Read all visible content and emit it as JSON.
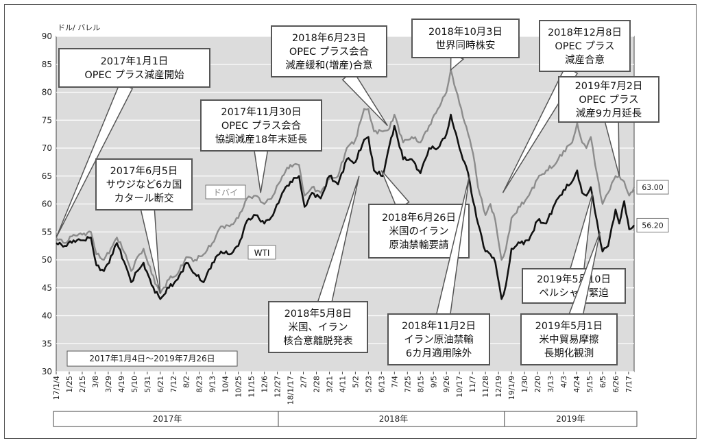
{
  "chart_data": {
    "type": "line",
    "unit_label": "ドル/ バレル",
    "ylim": [
      30,
      90
    ],
    "yticks": [
      30,
      35,
      40,
      45,
      50,
      55,
      60,
      65,
      70,
      75,
      80,
      85,
      90
    ],
    "xlim": [
      "2017-01-04",
      "2019-07-26"
    ],
    "grid": true,
    "period_label": "2017年1月4日～2019年7月26日",
    "x_ticks": [
      {
        "date": "2017-01-04",
        "label": "17/1/4"
      },
      {
        "date": "2017-01-25",
        "label": "1/25"
      },
      {
        "date": "2017-02-15",
        "label": "2/15"
      },
      {
        "date": "2017-03-08",
        "label": "3/8"
      },
      {
        "date": "2017-03-29",
        "label": "3/29"
      },
      {
        "date": "2017-04-19",
        "label": "4/19"
      },
      {
        "date": "2017-05-10",
        "label": "5/10"
      },
      {
        "date": "2017-05-31",
        "label": "5/31"
      },
      {
        "date": "2017-06-21",
        "label": "6/21"
      },
      {
        "date": "2017-07-12",
        "label": "7/12"
      },
      {
        "date": "2017-08-02",
        "label": "8/2"
      },
      {
        "date": "2017-08-23",
        "label": "8/23"
      },
      {
        "date": "2017-09-13",
        "label": "9/13"
      },
      {
        "date": "2017-10-04",
        "label": "10/4"
      },
      {
        "date": "2017-10-25",
        "label": "10/25"
      },
      {
        "date": "2017-11-15",
        "label": "11/15"
      },
      {
        "date": "2017-12-06",
        "label": "12/6"
      },
      {
        "date": "2017-12-27",
        "label": "12/27"
      },
      {
        "date": "2018-01-17",
        "label": "18/1/17"
      },
      {
        "date": "2018-02-07",
        "label": "2/7"
      },
      {
        "date": "2018-02-28",
        "label": "2/28"
      },
      {
        "date": "2018-03-21",
        "label": "3/21"
      },
      {
        "date": "2018-04-11",
        "label": "4/11"
      },
      {
        "date": "2018-05-02",
        "label": "5/2"
      },
      {
        "date": "2018-05-23",
        "label": "5/23"
      },
      {
        "date": "2018-06-13",
        "label": "6/13"
      },
      {
        "date": "2018-07-04",
        "label": "7/4"
      },
      {
        "date": "2018-07-25",
        "label": "7/25"
      },
      {
        "date": "2018-08-15",
        "label": "8/15"
      },
      {
        "date": "2018-09-05",
        "label": "9/5"
      },
      {
        "date": "2018-09-26",
        "label": "9/26"
      },
      {
        "date": "2018-10-17",
        "label": "10/17"
      },
      {
        "date": "2018-11-07",
        "label": "11/7"
      },
      {
        "date": "2018-11-28",
        "label": "11/28"
      },
      {
        "date": "2018-12-19",
        "label": "12/19"
      },
      {
        "date": "2019-01-09",
        "label": "19/1/9"
      },
      {
        "date": "2019-01-30",
        "label": "1/30"
      },
      {
        "date": "2019-02-20",
        "label": "2/20"
      },
      {
        "date": "2019-03-13",
        "label": "3/13"
      },
      {
        "date": "2019-04-03",
        "label": "4/3"
      },
      {
        "date": "2019-04-24",
        "label": "4/24"
      },
      {
        "date": "2019-05-15",
        "label": "5/15"
      },
      {
        "date": "2019-06-05",
        "label": "6/5"
      },
      {
        "date": "2019-06-26",
        "label": "6/26"
      },
      {
        "date": "2019-07-17",
        "label": "7/17"
      }
    ],
    "year_bands": [
      {
        "label": "2017年",
        "from": "2017-01-04",
        "to": "2017-12-29"
      },
      {
        "label": "2018年",
        "from": "2018-01-02",
        "to": "2018-12-31"
      },
      {
        "label": "2019年",
        "from": "2019-01-02",
        "to": "2019-07-26"
      }
    ],
    "series": [
      {
        "name": "ドバイ",
        "color": "#8c8c8c",
        "end_label": "63.00",
        "points": [
          [
            "2017-01-04",
            54
          ],
          [
            "2017-01-18",
            53
          ],
          [
            "2017-02-01",
            54.5
          ],
          [
            "2017-02-15",
            54.5
          ],
          [
            "2017-03-01",
            55
          ],
          [
            "2017-03-10",
            51
          ],
          [
            "2017-03-22",
            50
          ],
          [
            "2017-04-05",
            52.5
          ],
          [
            "2017-04-12",
            54
          ],
          [
            "2017-04-26",
            51
          ],
          [
            "2017-05-05",
            48
          ],
          [
            "2017-05-15",
            50.5
          ],
          [
            "2017-05-25",
            52
          ],
          [
            "2017-06-07",
            47.5
          ],
          [
            "2017-06-21",
            44
          ],
          [
            "2017-07-05",
            46.5
          ],
          [
            "2017-07-19",
            47.5
          ],
          [
            "2017-08-02",
            50.5
          ],
          [
            "2017-08-16",
            50
          ],
          [
            "2017-08-30",
            51
          ],
          [
            "2017-09-13",
            53
          ],
          [
            "2017-09-27",
            56
          ],
          [
            "2017-10-11",
            56
          ],
          [
            "2017-10-25",
            57.5
          ],
          [
            "2017-11-08",
            61
          ],
          [
            "2017-11-22",
            61.5
          ],
          [
            "2017-12-06",
            60
          ],
          [
            "2017-12-20",
            61.5
          ],
          [
            "2018-01-04",
            65
          ],
          [
            "2018-01-17",
            67
          ],
          [
            "2018-01-31",
            67
          ],
          [
            "2018-02-09",
            61.5
          ],
          [
            "2018-02-21",
            63
          ],
          [
            "2018-03-07",
            62
          ],
          [
            "2018-03-21",
            64.5
          ],
          [
            "2018-04-04",
            65
          ],
          [
            "2018-04-18",
            70
          ],
          [
            "2018-05-02",
            71.5
          ],
          [
            "2018-05-16",
            77
          ],
          [
            "2018-05-23",
            77
          ],
          [
            "2018-06-01",
            73
          ],
          [
            "2018-06-15",
            73
          ],
          [
            "2018-06-26",
            73.5
          ],
          [
            "2018-07-04",
            76
          ],
          [
            "2018-07-18",
            71
          ],
          [
            "2018-08-01",
            72
          ],
          [
            "2018-08-15",
            71
          ],
          [
            "2018-08-29",
            74
          ],
          [
            "2018-09-12",
            77
          ],
          [
            "2018-09-26",
            80
          ],
          [
            "2018-10-03",
            84
          ],
          [
            "2018-10-17",
            78
          ],
          [
            "2018-10-31",
            72.5
          ],
          [
            "2018-11-08",
            69
          ],
          [
            "2018-11-16",
            63
          ],
          [
            "2018-11-28",
            58
          ],
          [
            "2018-12-06",
            60
          ],
          [
            "2018-12-14",
            57
          ],
          [
            "2018-12-24",
            50
          ],
          [
            "2018-12-31",
            52
          ],
          [
            "2019-01-09",
            57.5
          ],
          [
            "2019-01-23",
            59.5
          ],
          [
            "2019-02-06",
            61.5
          ],
          [
            "2019-02-20",
            64.5
          ],
          [
            "2019-03-06",
            66
          ],
          [
            "2019-03-20",
            67
          ],
          [
            "2019-04-03",
            69.5
          ],
          [
            "2019-04-17",
            71
          ],
          [
            "2019-04-25",
            74.5
          ],
          [
            "2019-05-03",
            71
          ],
          [
            "2019-05-10",
            70
          ],
          [
            "2019-05-17",
            72
          ],
          [
            "2019-05-24",
            67
          ],
          [
            "2019-06-05",
            60
          ],
          [
            "2019-06-14",
            62
          ],
          [
            "2019-06-26",
            65
          ],
          [
            "2019-07-02",
            65
          ],
          [
            "2019-07-10",
            64
          ],
          [
            "2019-07-18",
            61.5
          ],
          [
            "2019-07-26",
            63
          ]
        ]
      },
      {
        "name": "WTI",
        "color": "#111111",
        "end_label": "56.20",
        "points": [
          [
            "2017-01-04",
            53
          ],
          [
            "2017-01-18",
            52.5
          ],
          [
            "2017-02-01",
            53.5
          ],
          [
            "2017-02-15",
            53.5
          ],
          [
            "2017-03-01",
            54
          ],
          [
            "2017-03-10",
            49
          ],
          [
            "2017-03-22",
            48
          ],
          [
            "2017-04-05",
            51
          ],
          [
            "2017-04-12",
            53
          ],
          [
            "2017-04-26",
            49
          ],
          [
            "2017-05-05",
            46
          ],
          [
            "2017-05-15",
            48
          ],
          [
            "2017-05-25",
            49.5
          ],
          [
            "2017-06-07",
            45.5
          ],
          [
            "2017-06-21",
            43
          ],
          [
            "2017-07-05",
            45
          ],
          [
            "2017-07-19",
            46.5
          ],
          [
            "2017-08-02",
            49.5
          ],
          [
            "2017-08-16",
            47.5
          ],
          [
            "2017-08-30",
            46
          ],
          [
            "2017-09-13",
            49.5
          ],
          [
            "2017-09-27",
            51.5
          ],
          [
            "2017-10-11",
            51
          ],
          [
            "2017-10-25",
            52.5
          ],
          [
            "2017-11-08",
            57
          ],
          [
            "2017-11-22",
            58
          ],
          [
            "2017-12-06",
            56.5
          ],
          [
            "2017-12-20",
            58
          ],
          [
            "2018-01-04",
            62
          ],
          [
            "2018-01-17",
            64
          ],
          [
            "2018-01-31",
            65
          ],
          [
            "2018-02-09",
            59.5
          ],
          [
            "2018-02-21",
            62
          ],
          [
            "2018-03-07",
            61
          ],
          [
            "2018-03-21",
            65
          ],
          [
            "2018-04-04",
            63.5
          ],
          [
            "2018-04-18",
            68
          ],
          [
            "2018-05-02",
            67.5
          ],
          [
            "2018-05-16",
            71.5
          ],
          [
            "2018-05-23",
            72
          ],
          [
            "2018-06-01",
            66
          ],
          [
            "2018-06-15",
            65
          ],
          [
            "2018-06-26",
            70.5
          ],
          [
            "2018-07-04",
            74
          ],
          [
            "2018-07-18",
            68
          ],
          [
            "2018-08-01",
            68
          ],
          [
            "2018-08-15",
            65.5
          ],
          [
            "2018-08-29",
            70
          ],
          [
            "2018-09-12",
            70
          ],
          [
            "2018-09-26",
            72.5
          ],
          [
            "2018-10-03",
            76
          ],
          [
            "2018-10-17",
            70
          ],
          [
            "2018-10-31",
            65.5
          ],
          [
            "2018-11-08",
            60.5
          ],
          [
            "2018-11-16",
            56.5
          ],
          [
            "2018-11-28",
            51.5
          ],
          [
            "2018-12-06",
            51
          ],
          [
            "2018-12-14",
            49.5
          ],
          [
            "2018-12-24",
            43
          ],
          [
            "2018-12-31",
            45.5
          ],
          [
            "2019-01-09",
            52
          ],
          [
            "2019-01-23",
            53
          ],
          [
            "2019-02-06",
            53.5
          ],
          [
            "2019-02-20",
            57
          ],
          [
            "2019-03-06",
            56.5
          ],
          [
            "2019-03-20",
            60
          ],
          [
            "2019-04-03",
            62.5
          ],
          [
            "2019-04-17",
            64
          ],
          [
            "2019-04-25",
            66
          ],
          [
            "2019-05-03",
            62
          ],
          [
            "2019-05-10",
            61.5
          ],
          [
            "2019-05-17",
            63
          ],
          [
            "2019-05-24",
            58.5
          ],
          [
            "2019-06-05",
            51.5
          ],
          [
            "2019-06-14",
            52.5
          ],
          [
            "2019-06-26",
            59
          ],
          [
            "2019-07-02",
            56.5
          ],
          [
            "2019-07-10",
            60.5
          ],
          [
            "2019-07-18",
            55.5
          ],
          [
            "2019-07-26",
            56.2
          ]
        ]
      }
    ],
    "annotations": [
      {
        "lines": [
          "2017年1月1日",
          "OPEC プラス減産開始"
        ],
        "target": [
          "2017-01-04",
          54
        ]
      },
      {
        "lines": [
          "2017年6月5日",
          "サウジなど6カ国",
          "カタール断交"
        ],
        "target": [
          "2017-06-21",
          44
        ]
      },
      {
        "lines": [
          "2017年11月30日",
          "OPEC プラス会合",
          "協調減産18年末延長"
        ],
        "target": [
          "2017-11-30",
          62
        ]
      },
      {
        "lines": [
          "2018年6月23日",
          "OPEC プラス会合",
          "減産緩和(増産)合意"
        ],
        "target": [
          "2018-06-23",
          74
        ]
      },
      {
        "lines": [
          "2018年10月3日",
          "世界同時株安"
        ],
        "target": [
          "2018-10-03",
          84
        ]
      },
      {
        "lines": [
          "2018年12月8日",
          "OPEC プラス",
          "減産合意"
        ],
        "target": [
          "2018-12-26",
          62
        ]
      },
      {
        "lines": [
          "2019年7月2日",
          "OPEC プラス",
          "減産9カ月延長"
        ],
        "target": [
          "2019-07-02",
          65
        ]
      },
      {
        "lines": [
          "2018年6月26日",
          "米国のイラン",
          "原油禁輸要請"
        ],
        "target": [
          "2018-06-13",
          66
        ]
      },
      {
        "lines": [
          "2018年5月8日",
          "米国、イラン",
          "核合意離脱発表"
        ],
        "target": [
          "2018-05-08",
          65
        ]
      },
      {
        "lines": [
          "2018年11月2日",
          "イラン原油禁輸",
          "6カ月適用除外"
        ],
        "target": [
          "2018-11-02",
          65
        ]
      },
      {
        "lines": [
          "2019年5月10日",
          "ペルシャ湾緊迫"
        ],
        "target": [
          "2019-05-20",
          62
        ]
      },
      {
        "lines": [
          "2019年5月1日",
          "米中貿易摩擦",
          "長期化観測"
        ],
        "target": [
          "2019-06-01",
          55
        ]
      }
    ]
  }
}
